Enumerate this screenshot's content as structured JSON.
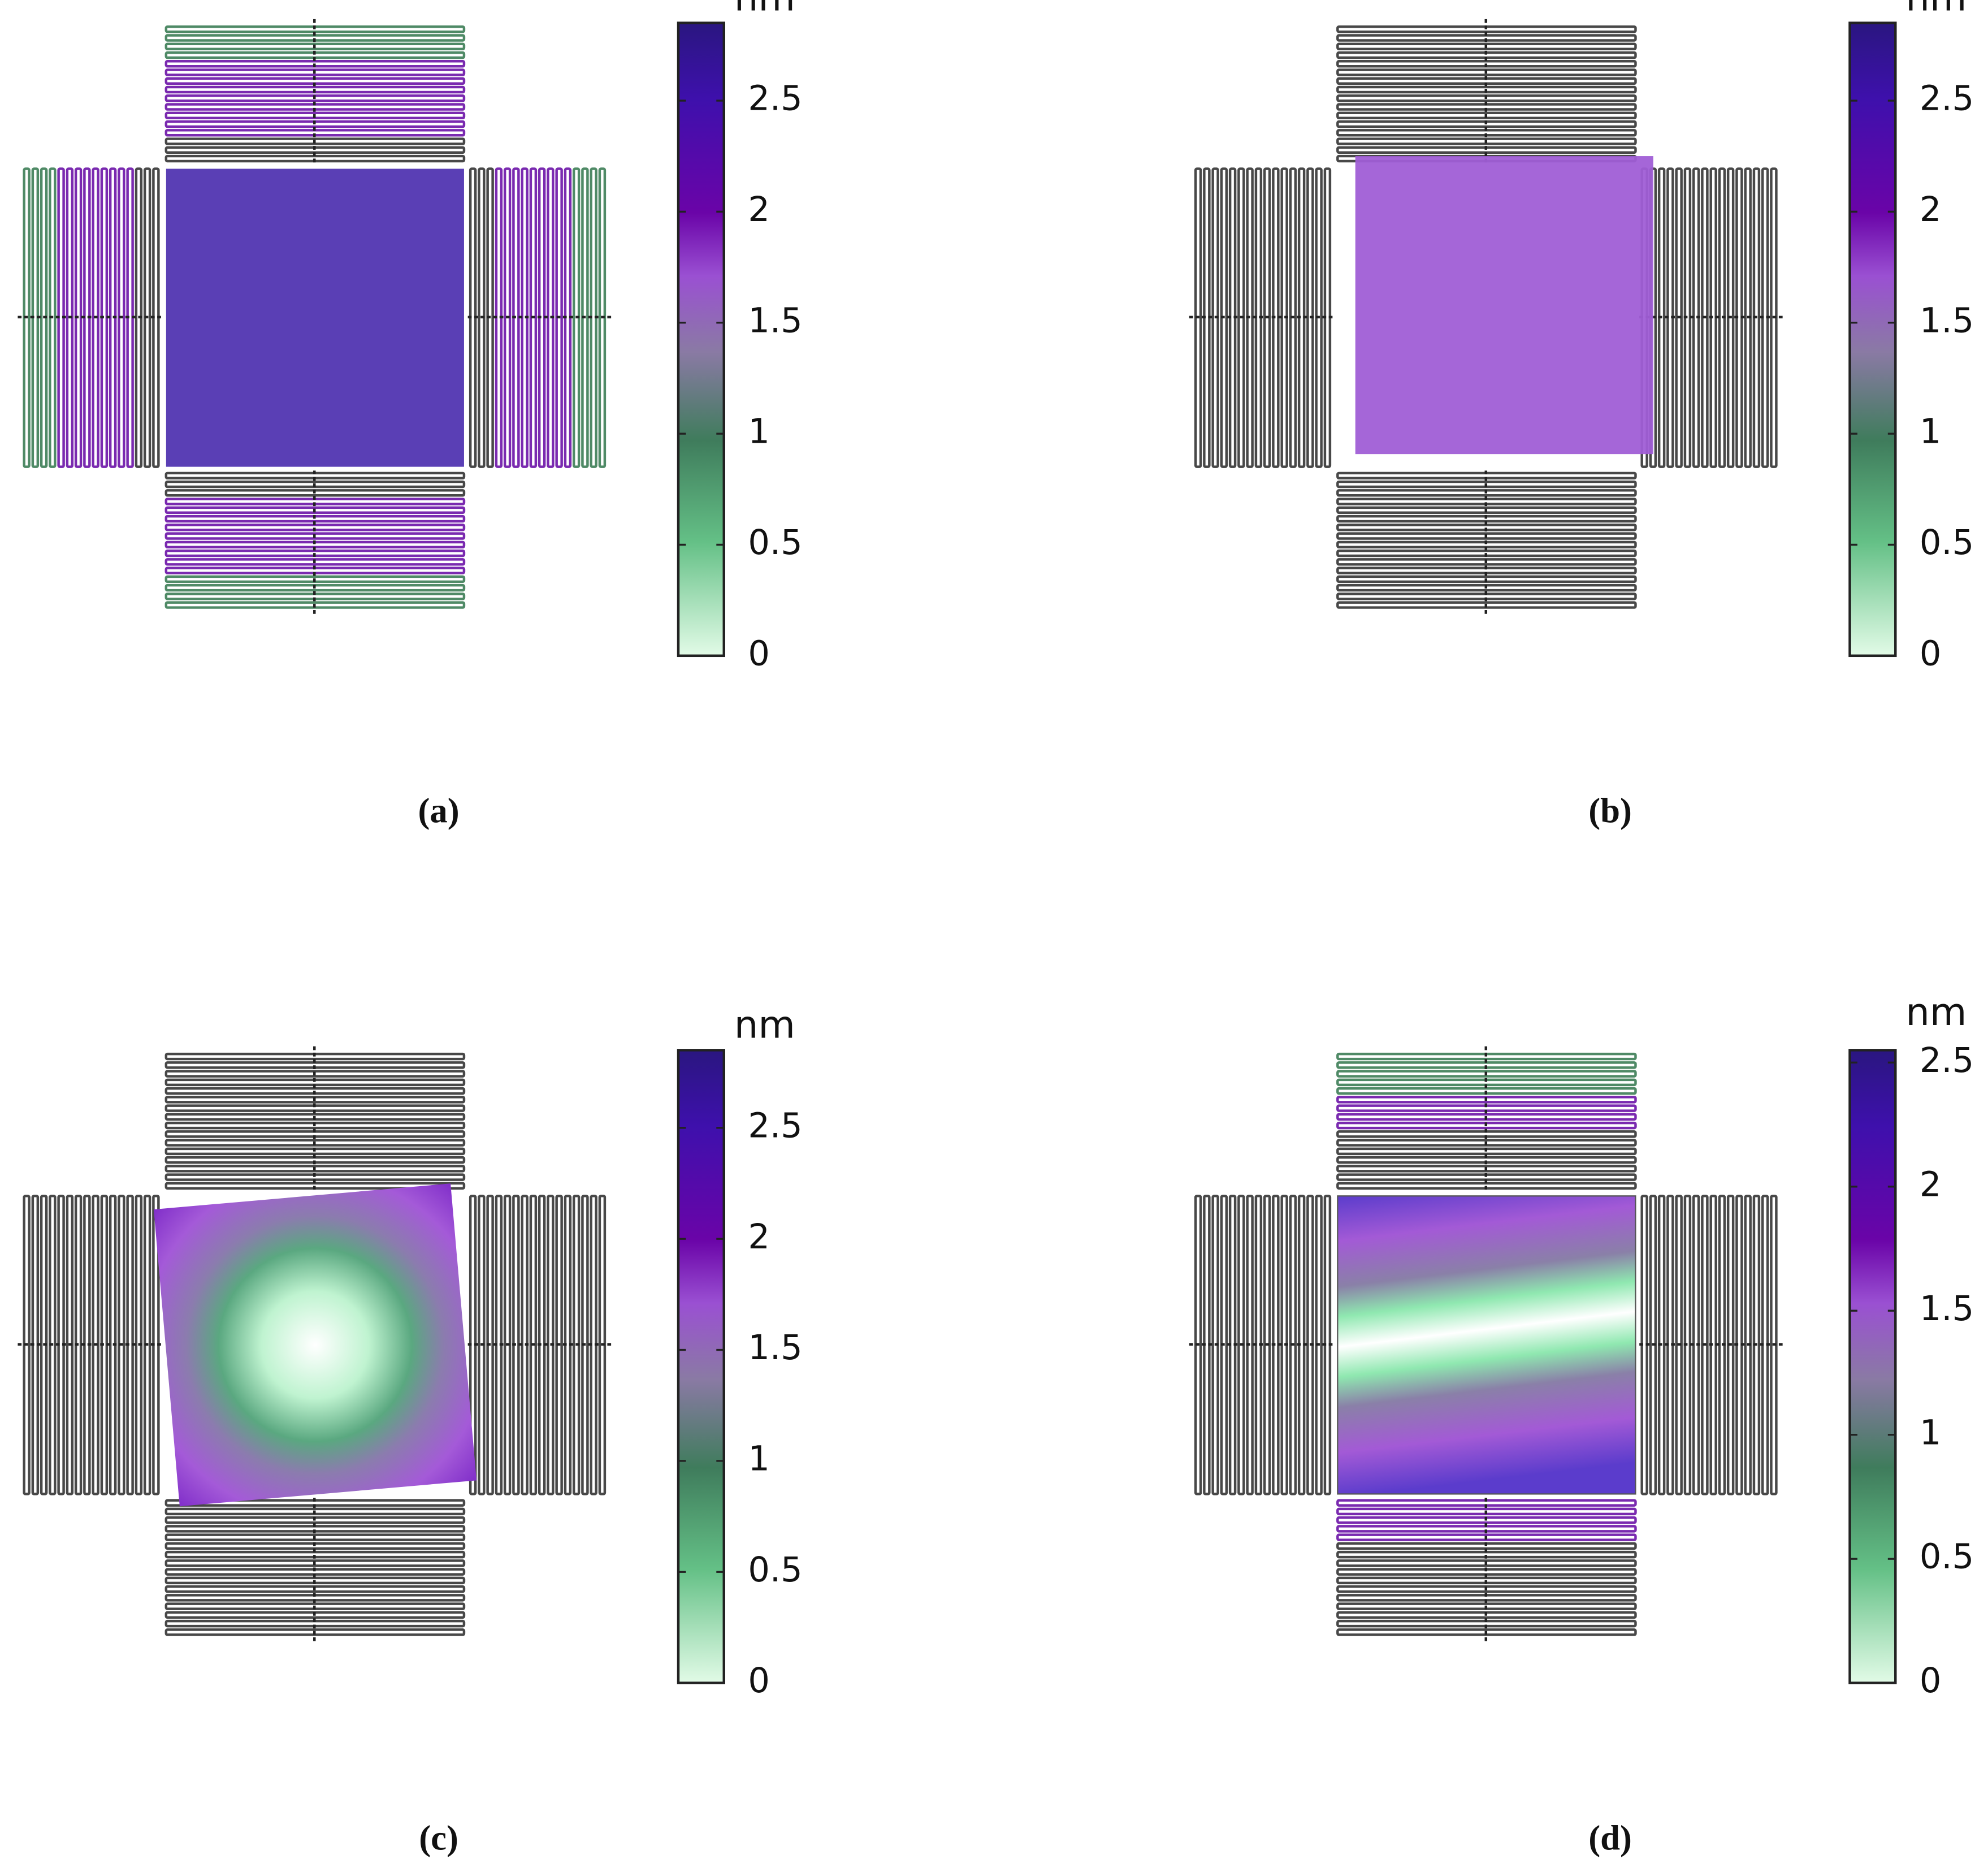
{
  "panels": [
    {
      "caption": "(a)",
      "colorbar": {
        "unit": "nm",
        "lim": [
          0,
          2.85
        ],
        "ticks": [
          0,
          0.5,
          1,
          1.5,
          2,
          2.5
        ]
      }
    },
    {
      "caption": "(b)",
      "colorbar": {
        "unit": "nm",
        "lim": [
          0,
          2.85
        ],
        "ticks": [
          0,
          0.5,
          1,
          1.5,
          2,
          2.5
        ]
      }
    },
    {
      "caption": "(c)",
      "colorbar": {
        "unit": "nm",
        "lim": [
          0,
          2.85
        ],
        "ticks": [
          0,
          0.5,
          1,
          1.5,
          2,
          2.5
        ]
      }
    },
    {
      "caption": "(d)",
      "colorbar": {
        "unit": "nm",
        "lim": [
          0,
          2.55
        ],
        "ticks": [
          0,
          0.5,
          1,
          1.5,
          2,
          2.5
        ]
      }
    }
  ]
}
